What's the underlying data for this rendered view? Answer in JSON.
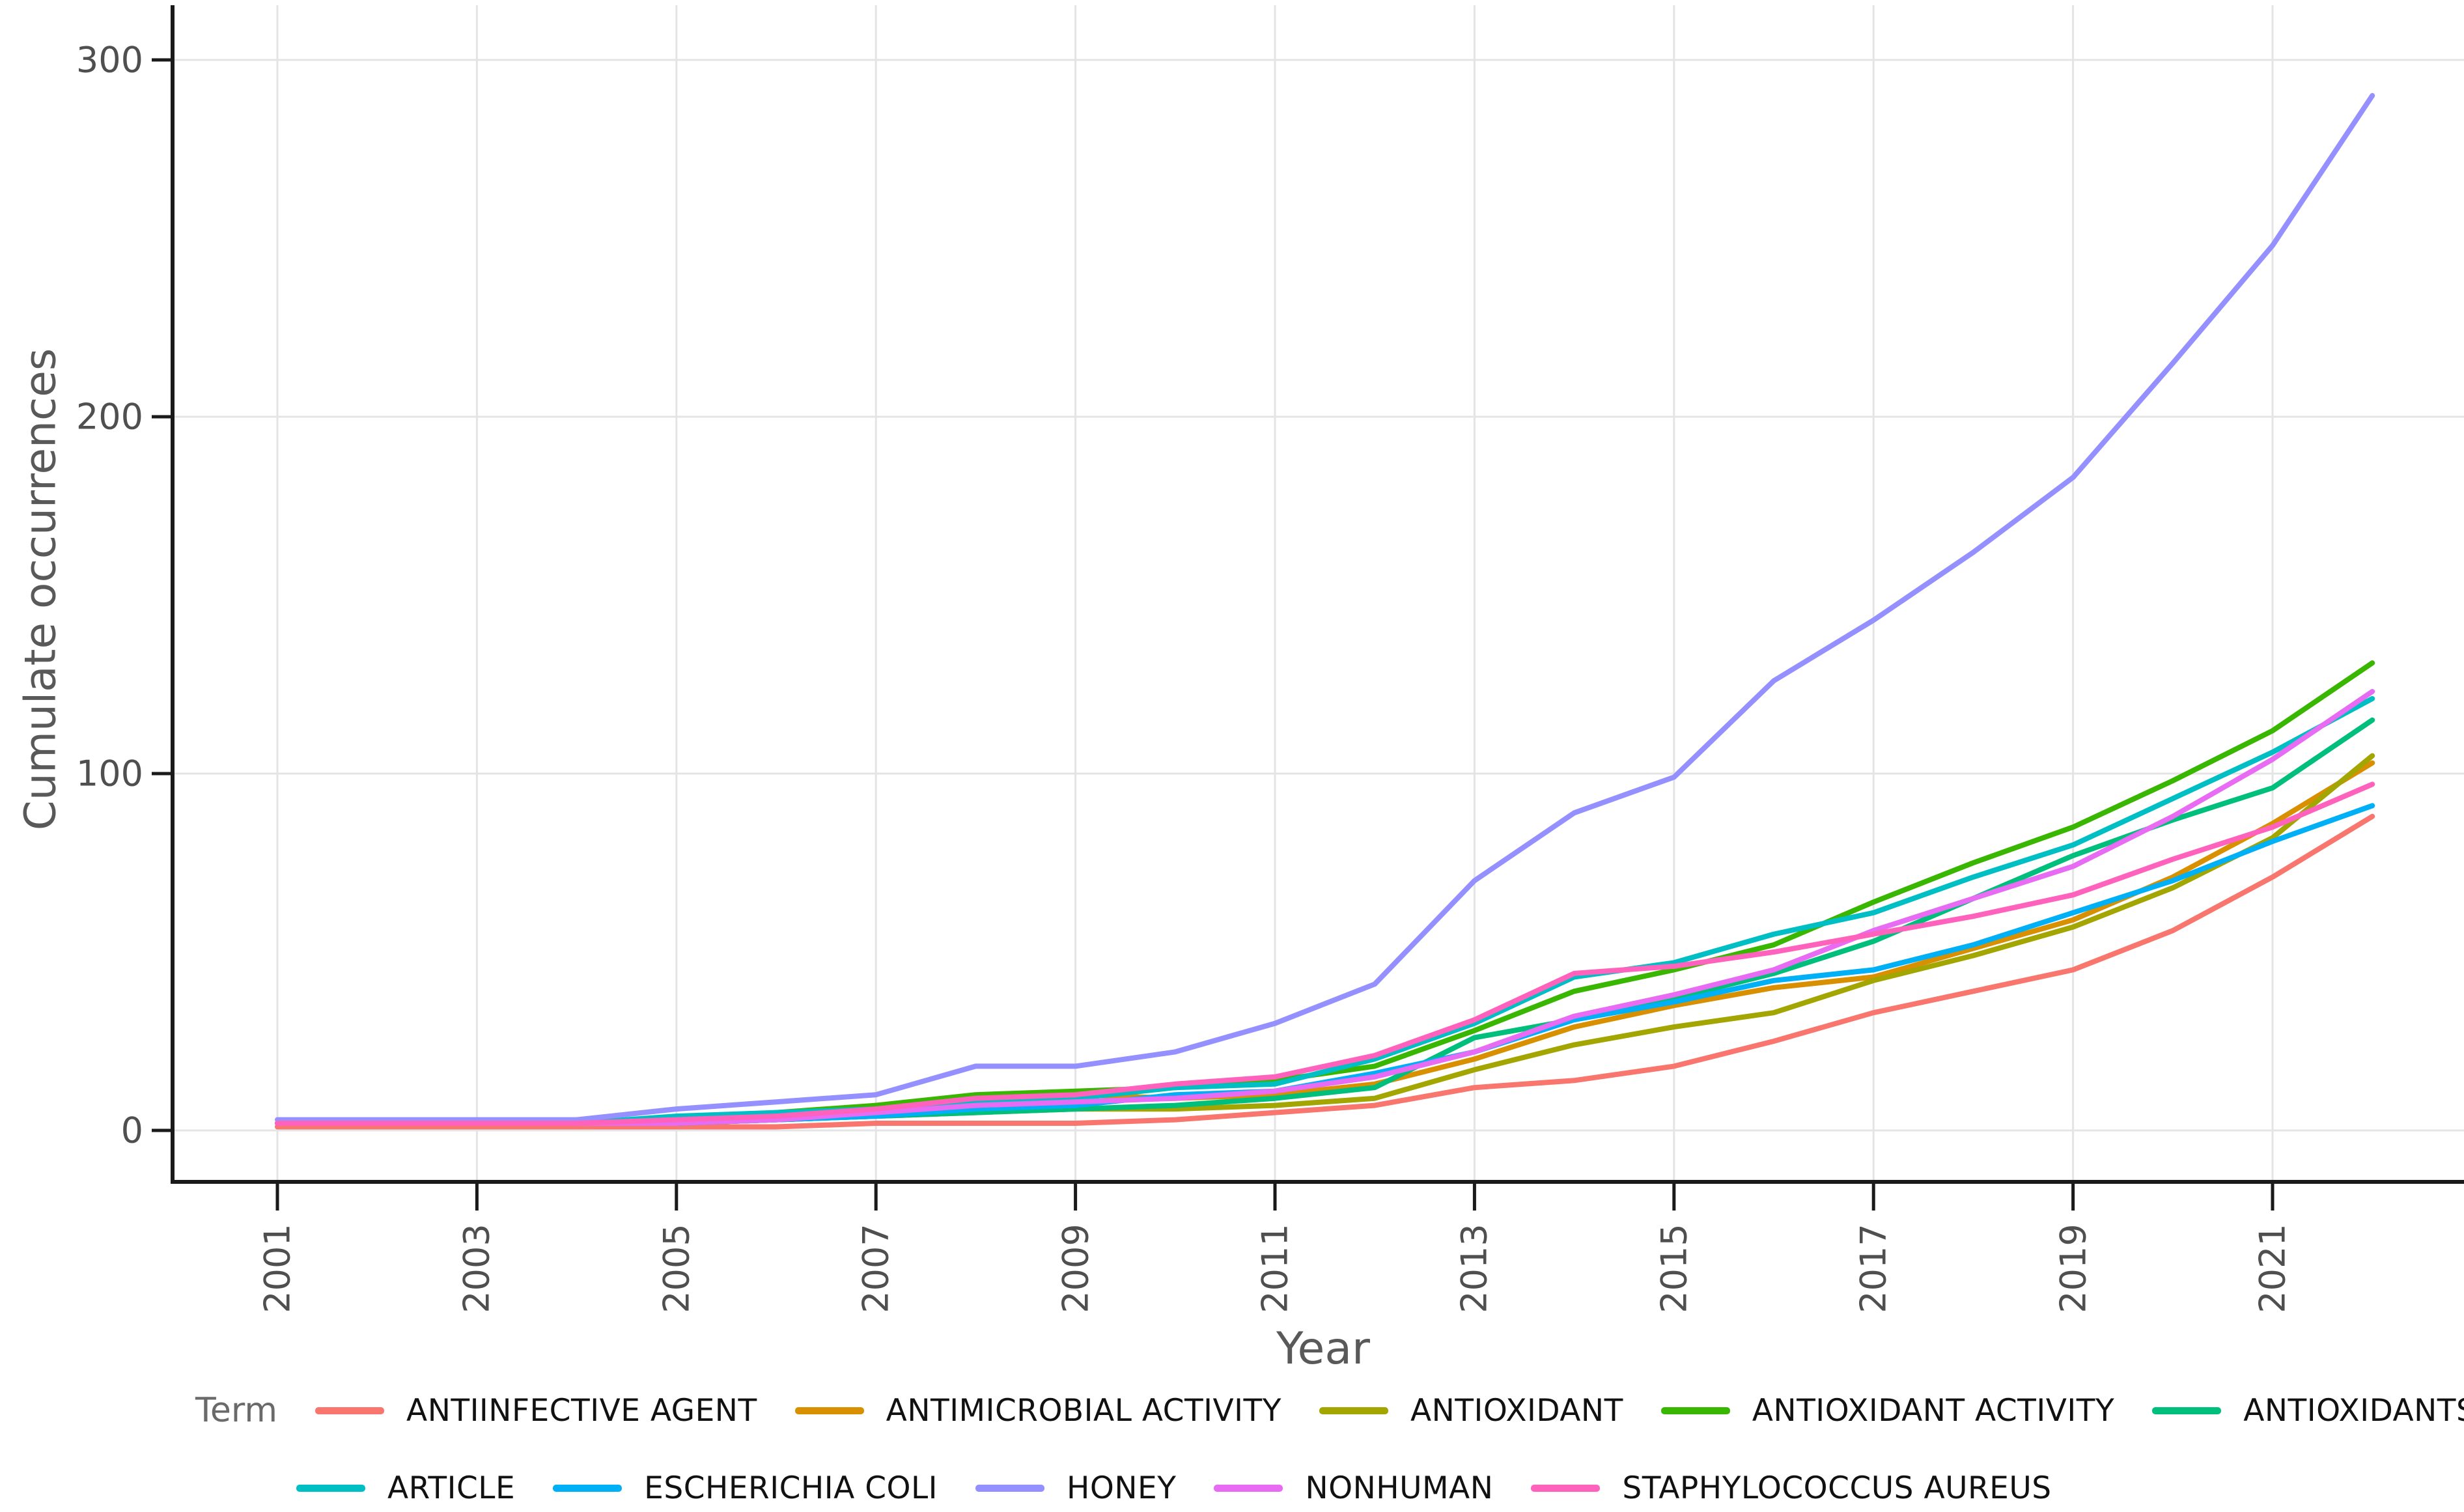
{
  "axes": {
    "y_title": "Cumulate occurrences",
    "x_title": "Year",
    "y_ticks": [
      "0",
      "100",
      "200",
      "300"
    ],
    "x_ticks": [
      "2001",
      "2003",
      "2005",
      "2007",
      "2009",
      "2011",
      "2013",
      "2015",
      "2017",
      "2019",
      "2021"
    ]
  },
  "legend": {
    "title": "Term",
    "rows": [
      [
        "ANTIINFECTIVE AGENT",
        "ANTIMICROBIAL ACTIVITY",
        "ANTIOXIDANT",
        "ANTIOXIDANT ACTIVITY",
        "ANTIOXIDANTS"
      ],
      [
        "ARTICLE",
        "ESCHERICHIA COLI",
        "HONEY",
        "NONHUMAN",
        "STAPHYLOCOCCUS AUREUS"
      ]
    ]
  },
  "colors": {
    "grid": "#e4e4e4",
    "spine": "#1a1a1a",
    "tick_mark": "#1a1a1a",
    "tick_text": "#4f4f4f",
    "axis_title_text": "#595959",
    "legend_text": "#111111"
  },
  "chart_data": {
    "type": "line",
    "title": "",
    "xlabel": "Year",
    "ylabel": "Cumulate occurrences",
    "x": [
      2001,
      2002,
      2003,
      2004,
      2005,
      2006,
      2007,
      2008,
      2009,
      2010,
      2011,
      2012,
      2013,
      2014,
      2015,
      2016,
      2017,
      2018,
      2019,
      2020,
      2021,
      2022
    ],
    "ylim": [
      0,
      300
    ],
    "yticks": [
      0,
      100,
      200,
      300
    ],
    "xtick_years": [
      2001,
      2003,
      2005,
      2007,
      2009,
      2011,
      2013,
      2015,
      2017,
      2019,
      2021
    ],
    "grid": "major-only",
    "legend_position": "bottom",
    "legend_title": "Term",
    "series": [
      {
        "name": "ANTIINFECTIVE AGENT",
        "color": "#F8766D",
        "values": [
          1,
          1,
          1,
          1,
          1,
          1,
          2,
          2,
          2,
          3,
          5,
          7,
          12,
          14,
          18,
          25,
          33,
          39,
          45,
          56,
          71,
          88
        ]
      },
      {
        "name": "ANTIMICROBIAL ACTIVITY",
        "color": "#D89000",
        "values": [
          2,
          2,
          2,
          2,
          3,
          4,
          7,
          9,
          10,
          9,
          10,
          13,
          20,
          29,
          35,
          40,
          43,
          51,
          59,
          71,
          86,
          103
        ]
      },
      {
        "name": "ANTIOXIDANT",
        "color": "#A3A500",
        "values": [
          2,
          2,
          2,
          2,
          2,
          3,
          4,
          5,
          6,
          6,
          7,
          9,
          17,
          24,
          29,
          33,
          42,
          49,
          57,
          68,
          82,
          105
        ]
      },
      {
        "name": "ANTIOXIDANT ACTIVITY",
        "color": "#39B600",
        "values": [
          2,
          2,
          2,
          2,
          3,
          5,
          7,
          10,
          11,
          12,
          14,
          18,
          28,
          39,
          45,
          52,
          64,
          75,
          85,
          98,
          112,
          131
        ]
      },
      {
        "name": "ANTIOXIDANTS",
        "color": "#00BF7D",
        "values": [
          2,
          2,
          2,
          2,
          2,
          3,
          4,
          5,
          6,
          7,
          9,
          12,
          26,
          31,
          37,
          44,
          53,
          65,
          77,
          87,
          96,
          115
        ]
      },
      {
        "name": "ARTICLE",
        "color": "#00BFC4",
        "values": [
          2,
          2,
          2,
          2,
          4,
          5,
          6,
          8,
          9,
          12,
          13,
          20,
          30,
          43,
          47,
          55,
          61,
          71,
          80,
          93,
          106,
          121
        ]
      },
      {
        "name": "ESCHERICHIA COLI",
        "color": "#00B0F6",
        "values": [
          2,
          2,
          2,
          2,
          2,
          3,
          4,
          6,
          7,
          10,
          11,
          16,
          22,
          31,
          36,
          42,
          45,
          52,
          61,
          70,
          81,
          91
        ]
      },
      {
        "name": "HONEY",
        "color": "#9590FF",
        "values": [
          3,
          3,
          3,
          3,
          6,
          8,
          10,
          18,
          18,
          22,
          30,
          41,
          70,
          89,
          99,
          126,
          143,
          162,
          183,
          215,
          248,
          290
        ]
      },
      {
        "name": "NONHUMAN",
        "color": "#E76BF3",
        "values": [
          2,
          2,
          2,
          2,
          2,
          3,
          5,
          7,
          8,
          9,
          11,
          15,
          22,
          32,
          38,
          45,
          56,
          65,
          74,
          88,
          104,
          123
        ]
      },
      {
        "name": "STAPHYLOCOCCUS AUREUS",
        "color": "#FF62BC",
        "values": [
          2,
          2,
          2,
          2,
          3,
          4,
          6,
          9,
          10,
          13,
          15,
          21,
          31,
          44,
          46,
          50,
          55,
          60,
          66,
          76,
          85,
          97
        ]
      }
    ]
  },
  "geometry_note": "y axis 0..300, gridlines at 100s; x axis 2001..2022 with odd-year gridlines"
}
